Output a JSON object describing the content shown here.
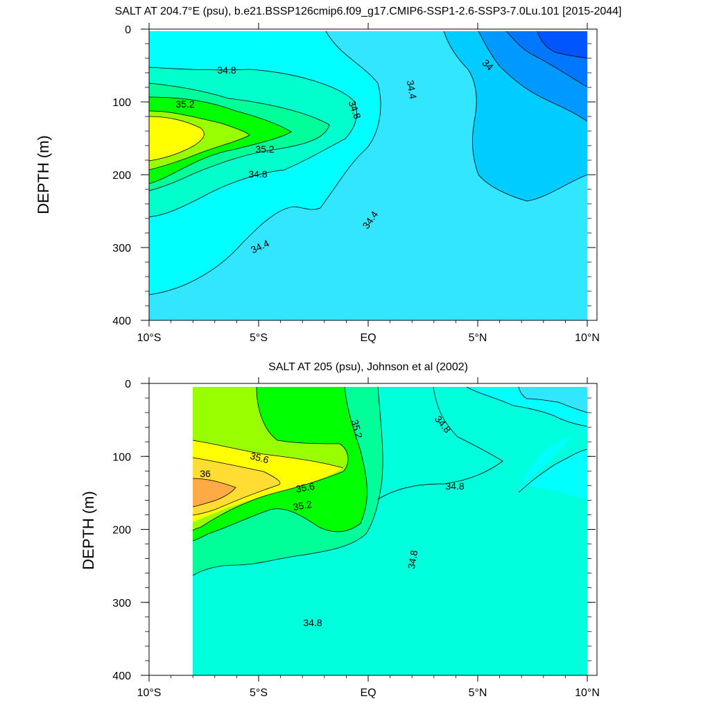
{
  "chart_data": [
    {
      "type": "contour",
      "title": "SALT AT 204.7°E (psu), b.e21.BSSP126cmip6.f09_g17.CMIP6-SSP1-2.6-SSP3-7.0Lu.101 [2015-2044]",
      "ylabel": "DEPTH (m)",
      "xlabel": "",
      "xlim": [
        -10,
        10
      ],
      "ylim": [
        0,
        400
      ],
      "y_inverted": true,
      "xticks": [
        "10°S",
        "5°S",
        "EQ",
        "5°N",
        "10°N"
      ],
      "yticks": [
        "0",
        "100",
        "200",
        "300",
        "400"
      ],
      "contour_labels": [
        "34.8",
        "35.2",
        "35.2",
        "34.8",
        "34.8",
        "34.4",
        "34.4",
        "34.4",
        "34"
      ],
      "levels": [
        33.8,
        34.0,
        34.2,
        34.4,
        34.6,
        34.8,
        35.0,
        35.2,
        35.4
      ],
      "fill_colors": [
        "#0055ff",
        "#0099ff",
        "#00bbff",
        "#33ddff",
        "#00ffff",
        "#00ffcc",
        "#00ff99",
        "#00ff00",
        "#99ff00",
        "#ffff00"
      ],
      "regions": [
        {
          "level": 34.4,
          "points": [
            [
              -10,
              0
            ],
            [
              10,
              0
            ],
            [
              10,
              400
            ],
            [
              -10,
              400
            ]
          ]
        },
        {
          "level": 34.6,
          "points": [
            [
              -10,
              0
            ],
            [
              -2.0,
              0
            ],
            [
              -1.3,
              25
            ],
            [
              -0.6,
              60
            ],
            [
              0.2,
              85
            ],
            [
              0.5,
              120
            ],
            [
              0.5,
              165
            ],
            [
              -0.4,
              190
            ],
            [
              -2.5,
              200
            ],
            [
              -5.0,
              215
            ],
            [
              -7.0,
              240
            ],
            [
              -9.0,
              270
            ],
            [
              -10,
              275
            ]
          ]
        },
        {
          "level": 34.6,
          "points": [
            [
              -10,
              0
            ],
            [
              -2.0,
              0
            ],
            [
              -1.3,
              25
            ],
            [
              -0.6,
              60
            ],
            [
              0.2,
              85
            ],
            [
              0.5,
              120
            ],
            [
              0.5,
              165
            ],
            [
              0.3,
              180
            ],
            [
              -0.5,
              200
            ],
            [
              -1.8,
              240
            ],
            [
              -2.2,
              280
            ],
            [
              -3.0,
              280
            ],
            [
              -4.2,
              255
            ],
            [
              -5.0,
              250
            ],
            [
              -6.5,
              262
            ],
            [
              -8.0,
              290
            ],
            [
              -9.0,
              305
            ],
            [
              -10,
              310
            ]
          ]
        },
        {
          "level": 34.6,
          "points": [
            [
              -10,
              0
            ],
            [
              -2.0,
              0
            ],
            [
              -1.0,
              30
            ],
            [
              0.1,
              80
            ],
            [
              0.5,
              130
            ],
            [
              0.3,
              180
            ],
            [
              -0.2,
              210
            ],
            [
              -1.0,
              240
            ],
            [
              -1.5,
              265
            ],
            [
              -2.6,
              275
            ],
            [
              -3.2,
              270
            ],
            [
              -3.5,
              260
            ],
            [
              -4.0,
              250
            ],
            [
              -5.0,
              255
            ],
            [
              -6.5,
              285
            ],
            [
              -8.0,
              330
            ],
            [
              -9.0,
              355
            ],
            [
              -10,
              365
            ]
          ]
        },
        {
          "level": 34.8,
          "points": [
            [
              -10,
              52
            ],
            [
              -8.0,
              55
            ],
            [
              -6.0,
              55
            ],
            [
              -4.0,
              60
            ],
            [
              -2.5,
              70
            ],
            [
              -1.3,
              90
            ],
            [
              -0.6,
              120
            ],
            [
              -0.9,
              150
            ],
            [
              -2.0,
              180
            ],
            [
              -3.5,
              195
            ],
            [
              -5.0,
              205
            ],
            [
              -6.5,
              225
            ],
            [
              -8.0,
              250
            ],
            [
              -10,
              275
            ]
          ]
        },
        {
          "level": 35.0,
          "points": [
            [
              -10,
              75
            ],
            [
              -8.5,
              80
            ],
            [
              -6.5,
              92
            ],
            [
              -5.0,
              105
            ],
            [
              -3.5,
              120
            ],
            [
              -1.7,
              145
            ],
            [
              -2.0,
              160
            ],
            [
              -3.5,
              170
            ],
            [
              -5.0,
              180
            ],
            [
              -6.5,
              198
            ],
            [
              -8.0,
              218
            ],
            [
              -10,
              245
            ]
          ]
        },
        {
          "level": 35.2,
          "points": [
            [
              -10,
              95
            ],
            [
              -8.5,
              100
            ],
            [
              -6.5,
              110
            ],
            [
              -5.0,
              125
            ],
            [
              -3.6,
              140
            ],
            [
              -3.8,
              148
            ],
            [
              -5.0,
              155
            ],
            [
              -6.5,
              170
            ],
            [
              -8.0,
              190
            ],
            [
              -10,
              220
            ]
          ]
        },
        {
          "level": 35.4,
          "points": [
            [
              -10,
              110
            ],
            [
              -8.0,
              118
            ],
            [
              -6.0,
              140
            ],
            [
              -5.6,
              148
            ],
            [
              -6.5,
              162
            ],
            [
              -8.0,
              178
            ],
            [
              -10,
              200
            ]
          ]
        },
        {
          "level": 35.6,
          "points": [
            [
              -10,
              120
            ],
            [
              -8.5,
              125
            ],
            [
              -7.5,
              140
            ],
            [
              -7.4,
              150
            ],
            [
              -8.0,
              165
            ],
            [
              -9.0,
              175
            ],
            [
              -10,
              180
            ]
          ]
        },
        {
          "level": 34.2,
          "points": [
            [
              3.5,
              0
            ],
            [
              10,
              0
            ],
            [
              10,
              200
            ],
            [
              9.0,
              215
            ],
            [
              8.0,
              232
            ],
            [
              7.0,
              235
            ],
            [
              6.0,
              220
            ],
            [
              5.3,
              200
            ],
            [
              5.0,
              170
            ],
            [
              5.1,
              140
            ],
            [
              5.0,
              115
            ],
            [
              4.0,
              80
            ],
            [
              3.6,
              40
            ]
          ]
        },
        {
          "level": 34.0,
          "points": [
            [
              5.0,
              0
            ],
            [
              10,
              0
            ],
            [
              10,
              125
            ],
            [
              9.0,
              108
            ],
            [
              8.0,
              98
            ],
            [
              7.0,
              80
            ],
            [
              6.0,
              65
            ],
            [
              5.2,
              35
            ]
          ]
        },
        {
          "level": 33.8,
          "points": [
            [
              6.3,
              0
            ],
            [
              10,
              0
            ],
            [
              10,
              78
            ],
            [
              9.0,
              60
            ],
            [
              8.0,
              45
            ],
            [
              7.0,
              30
            ]
          ]
        },
        {
          "level": 33.6,
          "points": [
            [
              7.5,
              0
            ],
            [
              10,
              0
            ],
            [
              10,
              40
            ],
            [
              9.0,
              35
            ],
            [
              8.0,
              25
            ]
          ]
        }
      ]
    },
    {
      "type": "contour",
      "title": "SALT AT 205 (psu), Johnson et al (2002)",
      "ylabel": "DEPTH (m)",
      "xlabel": "",
      "xlim": [
        -10,
        10
      ],
      "ylim": [
        0,
        400
      ],
      "y_inverted": true,
      "data_xrange": [
        -8,
        10
      ],
      "xticks": [
        "10°S",
        "5°S",
        "EQ",
        "5°N",
        "10°N"
      ],
      "yticks": [
        "0",
        "100",
        "200",
        "300",
        "400"
      ],
      "contour_labels": [
        "35.2",
        "34.8",
        "35.6",
        "36",
        "35.6",
        "35.2",
        "34.8",
        "34.8",
        "34.8"
      ],
      "regions": []
    }
  ]
}
